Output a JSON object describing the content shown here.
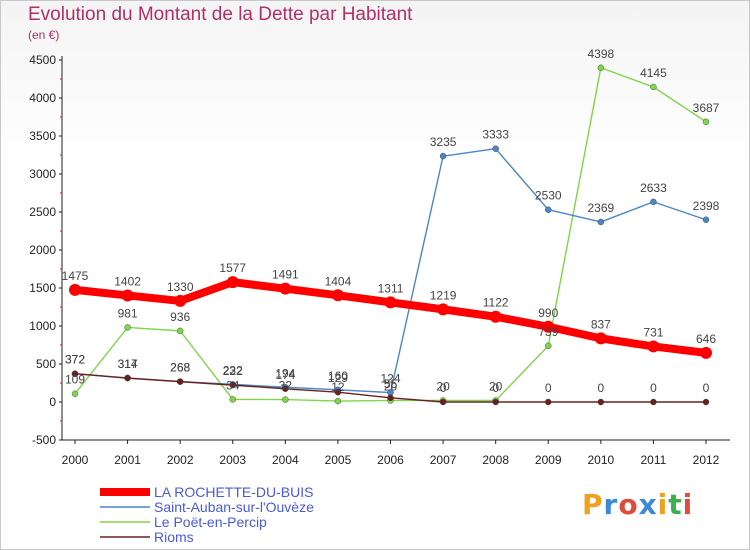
{
  "title": "Evolution du Montant de la Dette par Habitant",
  "subtitle": "(en €)",
  "logo": [
    "P",
    "r",
    "o",
    "x",
    "i",
    "t",
    "i"
  ],
  "logo_colors": [
    "#f0a020",
    "#3c8ad8",
    "#e24b3c",
    "#3c8ad8",
    "#f0a020",
    "#3cb04a",
    "#e24b3c"
  ],
  "chart_data": {
    "type": "line",
    "title": "Evolution du Montant de la Dette par Habitant",
    "ylabel": "(en €)",
    "xlabel": "",
    "x": [
      "2000",
      "2001",
      "2002",
      "2003",
      "2004",
      "2005",
      "2006",
      "2007",
      "2008",
      "2009",
      "2010",
      "2011",
      "2012"
    ],
    "ylim": [
      -500,
      4500
    ],
    "yticks": [
      -500,
      0,
      500,
      1000,
      1500,
      2000,
      2500,
      3000,
      3500,
      4000,
      4500
    ],
    "grid": false,
    "legend_position": "bottom-left",
    "series": [
      {
        "name": "LA ROCHETTE-DU-BUIS",
        "color": "#ff0000",
        "values": [
          1475,
          1402,
          1330,
          1577,
          1491,
          1404,
          1311,
          1219,
          1122,
          990,
          837,
          731,
          646
        ],
        "labels": [
          "1475",
          "1402",
          "1330",
          "1577",
          "1491",
          "1404",
          "1311",
          "1219",
          "1122",
          "990",
          "837",
          "731",
          "646"
        ]
      },
      {
        "name": "Saint-Auban-sur-l'Ouvèze",
        "color": "#4a86c8",
        "values": [
          372,
          317,
          268,
          232,
          194,
          160,
          124,
          3235,
          3333,
          2530,
          2369,
          2633,
          2398
        ],
        "labels": [
          "372",
          "317",
          "268",
          "232",
          "194",
          "160",
          "124",
          "3235",
          "3333",
          "2530",
          "2369",
          "2633",
          "2398"
        ]
      },
      {
        "name": "Le Poët-en-Percip",
        "color": "#7ed648",
        "values": [
          109,
          981,
          936,
          34,
          32,
          12,
          20,
          20,
          20,
          739,
          4398,
          4145,
          3687
        ],
        "labels": [
          "109",
          "981",
          "936",
          "34",
          "32",
          "12",
          "20",
          "20",
          "20",
          "739",
          "4398",
          "4145",
          "3687"
        ]
      },
      {
        "name": "Rioms",
        "color": "#6b2020",
        "values": [
          372,
          314,
          268,
          222,
          174,
          129,
          55,
          0,
          0,
          0,
          0,
          0,
          0
        ],
        "labels": [
          "372",
          "314",
          "268",
          "222",
          "174",
          "129",
          "55",
          "0",
          "0",
          "0",
          "0",
          "0",
          "0"
        ]
      }
    ]
  }
}
